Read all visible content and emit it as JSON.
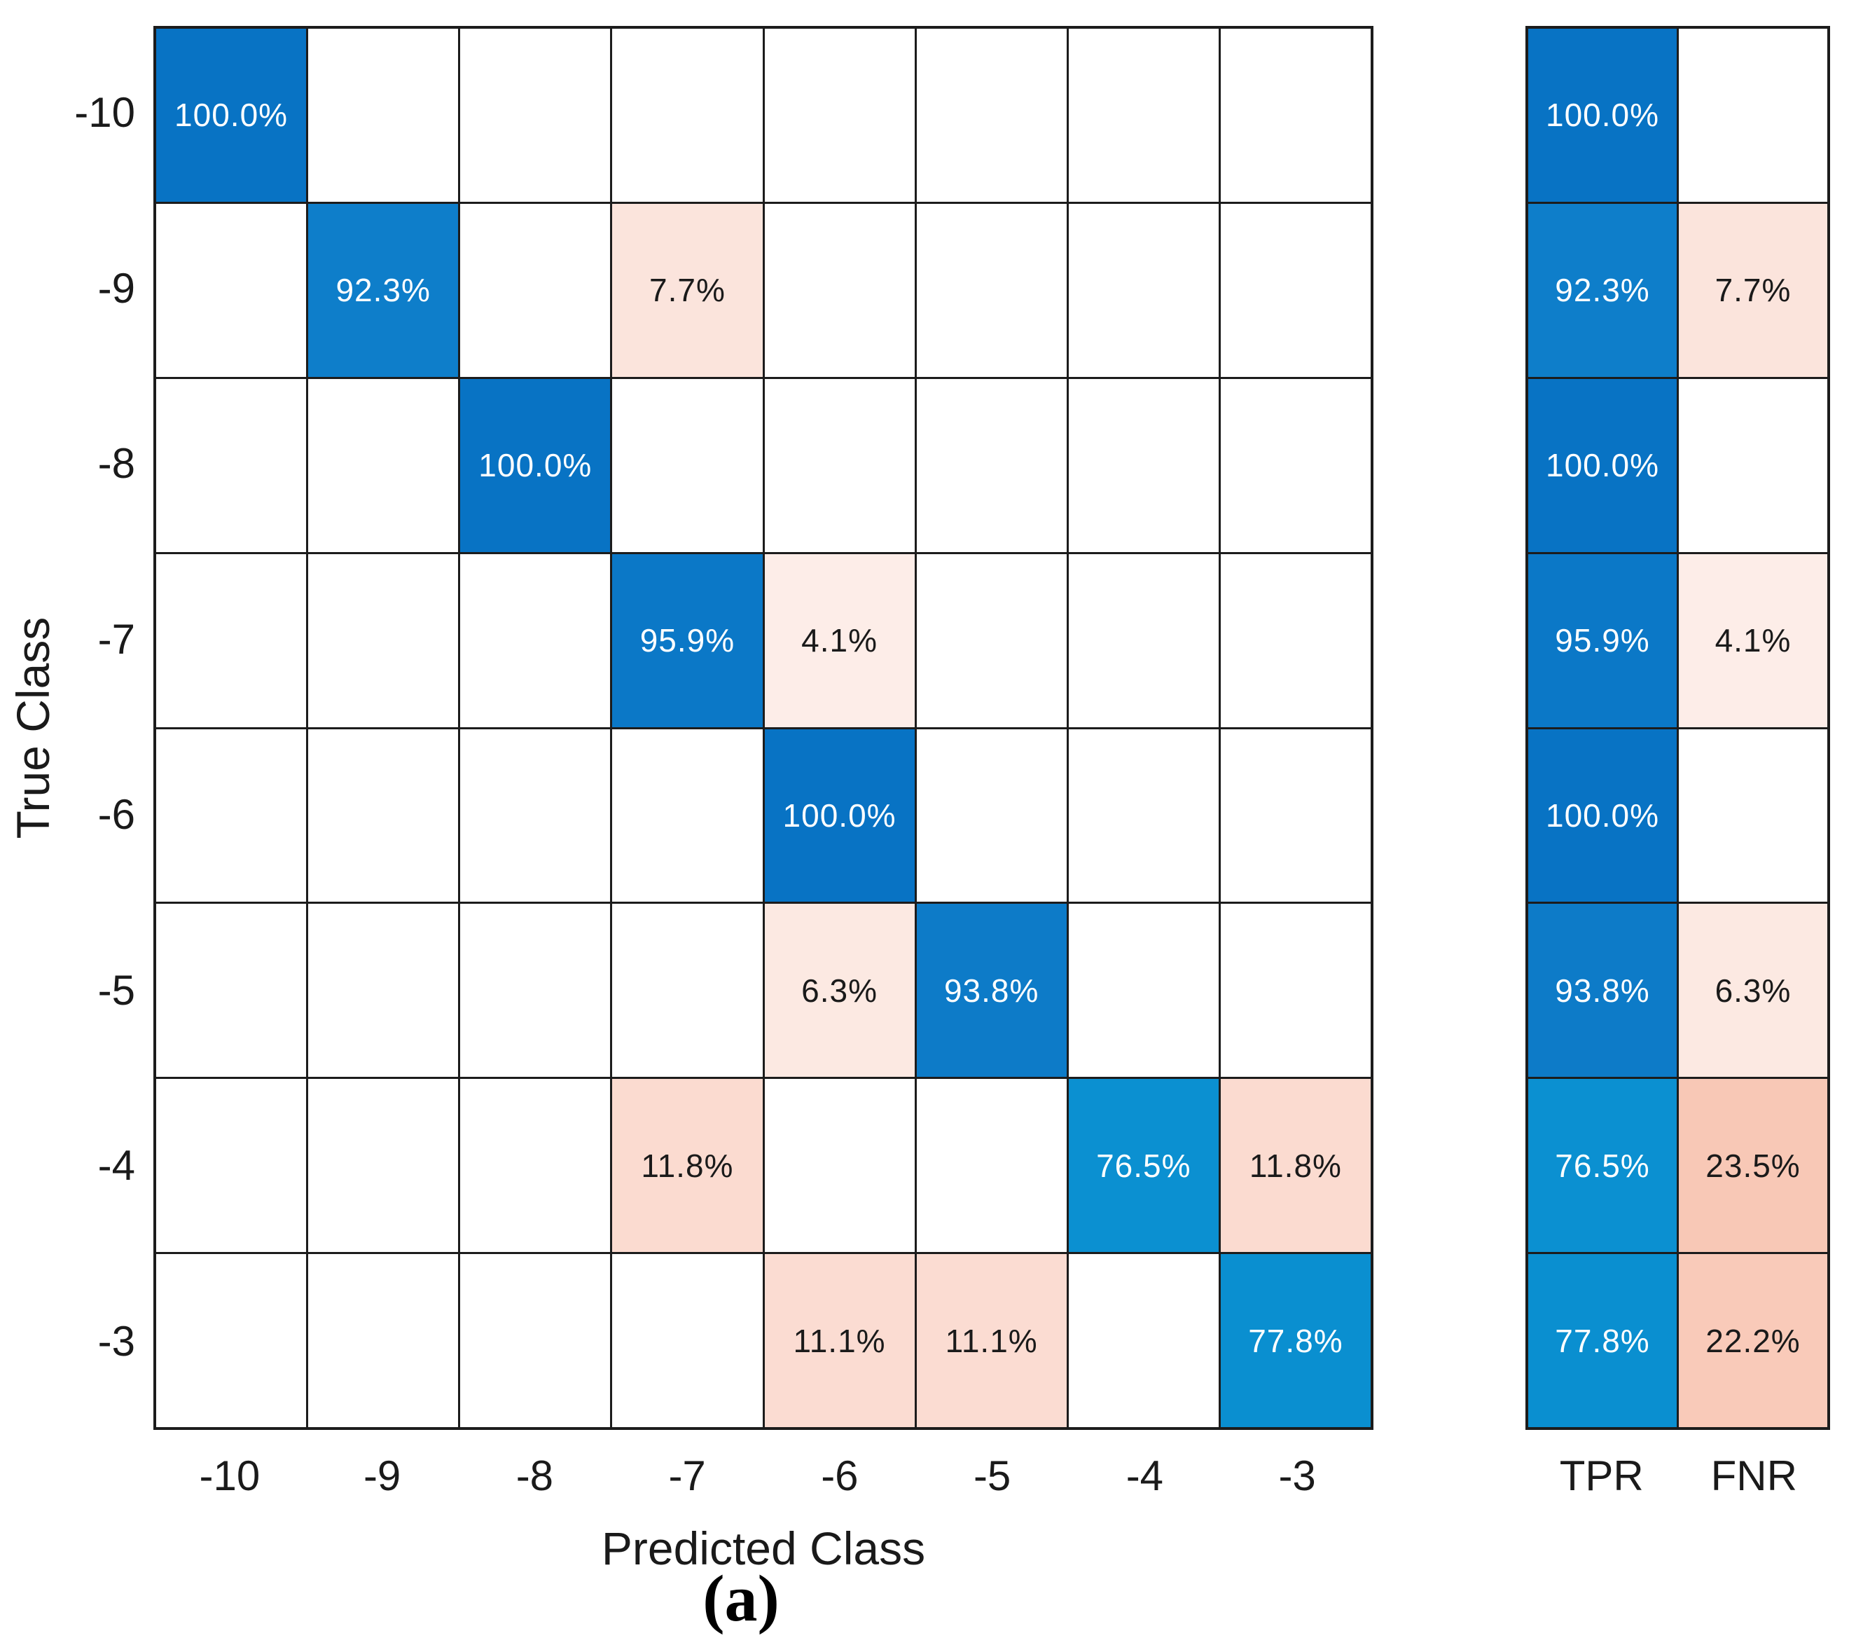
{
  "figure": {
    "xlabel": "Predicted Class",
    "ylabel": "True Class",
    "caption": "(a)"
  },
  "axes": {
    "x_ticks": [
      "-10",
      "-9",
      "-8",
      "-7",
      "-6",
      "-5",
      "-4",
      "-3"
    ],
    "y_ticks": [
      "-10",
      "-9",
      "-8",
      "-7",
      "-6",
      "-5",
      "-4",
      "-3"
    ],
    "summary_ticks": [
      "TPR",
      "FNR"
    ]
  },
  "colors": {
    "grid_line": "#1c1c1c",
    "background": "#ffffff",
    "diagonal_text": "#ffffff",
    "offdiagonal_text": "#1a1a1a"
  },
  "chart_data": {
    "type": "heatmap",
    "title": "",
    "xlabel": "Predicted Class",
    "ylabel": "True Class",
    "x_categories": [
      "-10",
      "-9",
      "-8",
      "-7",
      "-6",
      "-5",
      "-4",
      "-3"
    ],
    "y_categories": [
      "-10",
      "-9",
      "-8",
      "-7",
      "-6",
      "-5",
      "-4",
      "-3"
    ],
    "matrix_row_percent": [
      [
        100.0,
        0,
        0,
        0,
        0,
        0,
        0,
        0
      ],
      [
        0,
        92.3,
        0,
        7.7,
        0,
        0,
        0,
        0
      ],
      [
        0,
        0,
        100.0,
        0,
        0,
        0,
        0,
        0
      ],
      [
        0,
        0,
        0,
        95.9,
        4.1,
        0,
        0,
        0
      ],
      [
        0,
        0,
        0,
        0,
        100.0,
        0,
        0,
        0
      ],
      [
        0,
        0,
        0,
        0,
        6.3,
        93.8,
        0,
        0
      ],
      [
        0,
        0,
        0,
        11.8,
        0,
        0,
        76.5,
        11.8
      ],
      [
        0,
        0,
        0,
        0,
        11.1,
        11.1,
        0,
        77.8
      ]
    ],
    "tpr_percent": [
      100.0,
      92.3,
      100.0,
      95.9,
      100.0,
      93.8,
      76.5,
      77.8
    ],
    "fnr_percent": [
      0,
      7.7,
      0,
      4.1,
      0,
      6.3,
      23.5,
      22.2
    ],
    "cells": [
      {
        "r": 0,
        "c": 0,
        "label": "100.0%",
        "bg": "#0873c4",
        "fg": "#ffffff"
      },
      {
        "r": 1,
        "c": 1,
        "label": "92.3%",
        "bg": "#0e7eca",
        "fg": "#ffffff"
      },
      {
        "r": 1,
        "c": 3,
        "label": "7.7%",
        "bg": "#fbe4dc",
        "fg": "#1a1a1a"
      },
      {
        "r": 2,
        "c": 2,
        "label": "100.0%",
        "bg": "#0873c4",
        "fg": "#ffffff"
      },
      {
        "r": 3,
        "c": 3,
        "label": "95.9%",
        "bg": "#0b78c7",
        "fg": "#ffffff"
      },
      {
        "r": 3,
        "c": 4,
        "label": "4.1%",
        "bg": "#fdede8",
        "fg": "#1a1a1a"
      },
      {
        "r": 4,
        "c": 4,
        "label": "100.0%",
        "bg": "#0873c4",
        "fg": "#ffffff"
      },
      {
        "r": 5,
        "c": 4,
        "label": "6.3%",
        "bg": "#fce9e2",
        "fg": "#1a1a1a"
      },
      {
        "r": 5,
        "c": 5,
        "label": "93.8%",
        "bg": "#0d7bc8",
        "fg": "#ffffff"
      },
      {
        "r": 6,
        "c": 3,
        "label": "11.8%",
        "bg": "#fbdbd0",
        "fg": "#1a1a1a"
      },
      {
        "r": 6,
        "c": 6,
        "label": "76.5%",
        "bg": "#0b90d1",
        "fg": "#ffffff"
      },
      {
        "r": 6,
        "c": 7,
        "label": "11.8%",
        "bg": "#fbdbd0",
        "fg": "#1a1a1a"
      },
      {
        "r": 7,
        "c": 4,
        "label": "11.1%",
        "bg": "#fbdcd2",
        "fg": "#1a1a1a"
      },
      {
        "r": 7,
        "c": 5,
        "label": "11.1%",
        "bg": "#fbdcd2",
        "fg": "#1a1a1a"
      },
      {
        "r": 7,
        "c": 7,
        "label": "77.8%",
        "bg": "#0a8fd0",
        "fg": "#ffffff"
      }
    ],
    "summary": {
      "columns": [
        "TPR",
        "FNR"
      ],
      "rows": [
        {
          "class": "-10",
          "tpr": {
            "label": "100.0%",
            "bg": "#0873c4",
            "fg": "#ffffff"
          },
          "fnr": null
        },
        {
          "class": "-9",
          "tpr": {
            "label": "92.3%",
            "bg": "#0e7eca",
            "fg": "#ffffff"
          },
          "fnr": {
            "label": "7.7%",
            "bg": "#fbe4dc",
            "fg": "#1a1a1a"
          }
        },
        {
          "class": "-8",
          "tpr": {
            "label": "100.0%",
            "bg": "#0873c4",
            "fg": "#ffffff"
          },
          "fnr": null
        },
        {
          "class": "-7",
          "tpr": {
            "label": "95.9%",
            "bg": "#0b78c7",
            "fg": "#ffffff"
          },
          "fnr": {
            "label": "4.1%",
            "bg": "#fdede8",
            "fg": "#1a1a1a"
          }
        },
        {
          "class": "-6",
          "tpr": {
            "label": "100.0%",
            "bg": "#0873c4",
            "fg": "#ffffff"
          },
          "fnr": null
        },
        {
          "class": "-5",
          "tpr": {
            "label": "93.8%",
            "bg": "#0d7bc8",
            "fg": "#ffffff"
          },
          "fnr": {
            "label": "6.3%",
            "bg": "#fce9e2",
            "fg": "#1a1a1a"
          }
        },
        {
          "class": "-4",
          "tpr": {
            "label": "76.5%",
            "bg": "#0b90d1",
            "fg": "#ffffff"
          },
          "fnr": {
            "label": "23.5%",
            "bg": "#f8c8b6",
            "fg": "#1a1a1a"
          }
        },
        {
          "class": "-3",
          "tpr": {
            "label": "77.8%",
            "bg": "#0a8fd0",
            "fg": "#ffffff"
          },
          "fnr": {
            "label": "22.2%",
            "bg": "#f9cab9",
            "fg": "#1a1a1a"
          }
        }
      ]
    }
  }
}
